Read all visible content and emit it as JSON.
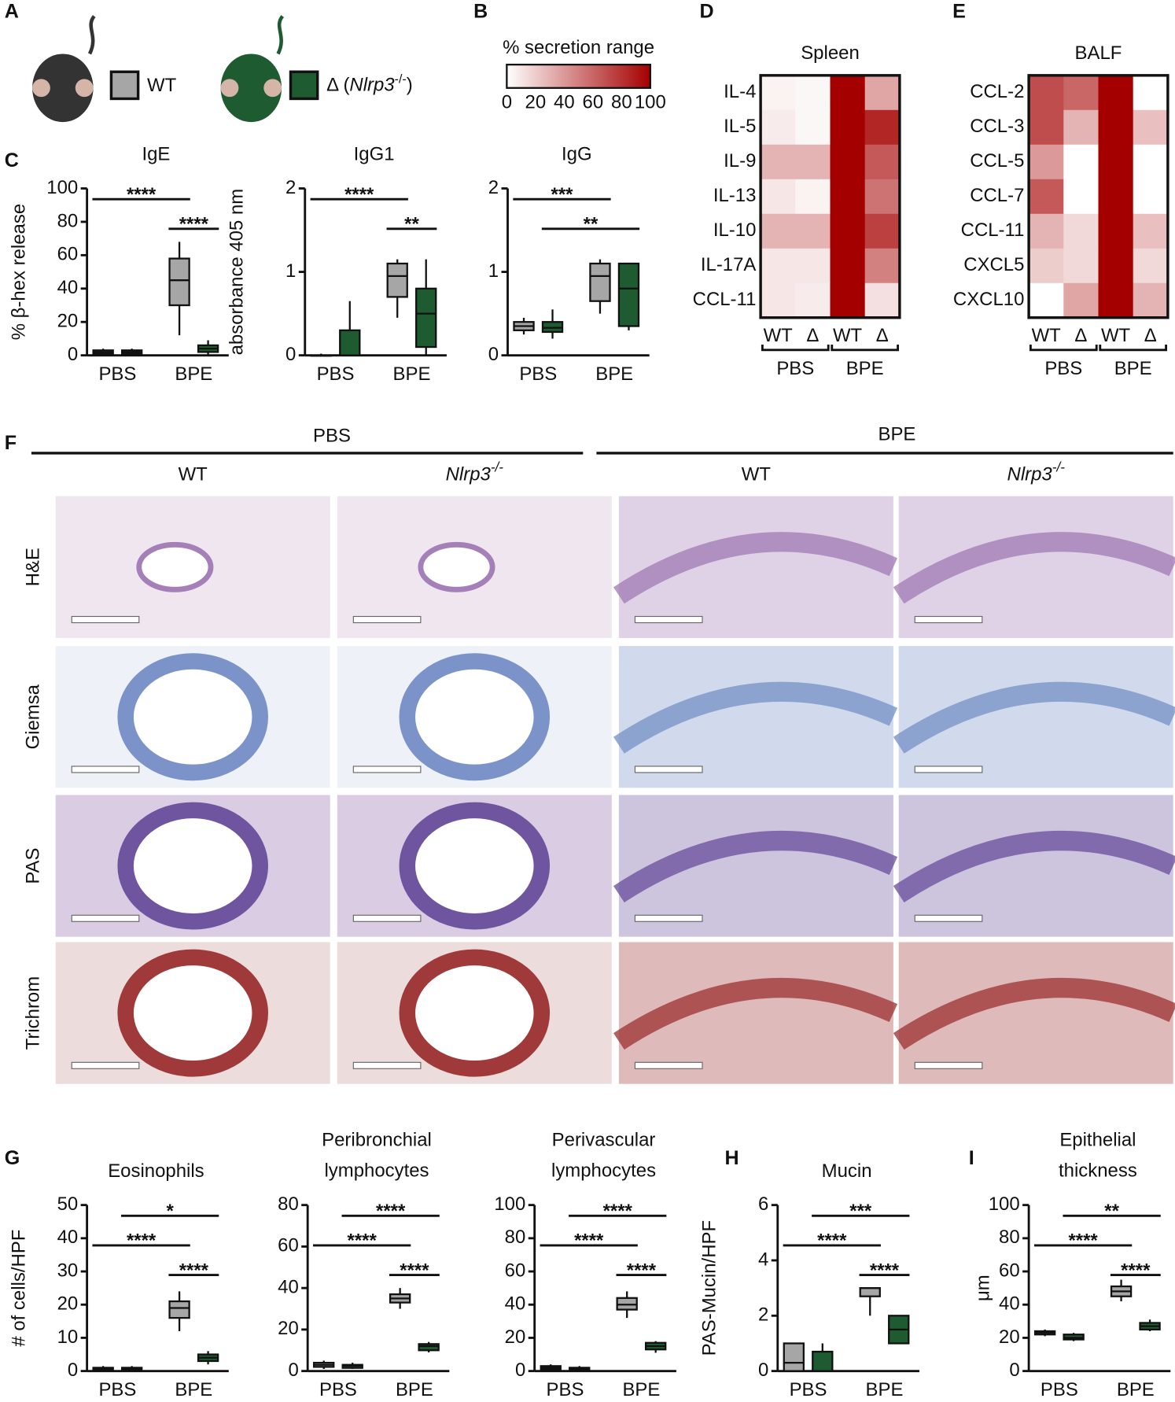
{
  "panel_labels": [
    "A",
    "B",
    "C",
    "D",
    "E",
    "F",
    "G",
    "H",
    "I"
  ],
  "legend": [
    {
      "label": "WT",
      "color": "#a6a6a6"
    },
    {
      "label": "Δ (",
      "name": "Nlrp3",
      "sup": "-/-",
      "close": ")",
      "color": "#1e5b30"
    }
  ],
  "histology": {
    "groups": [
      "PBS",
      "BPE"
    ],
    "genotypes": [
      {
        "name": "WT"
      },
      {
        "name": "Nlrp3",
        "sup": "-/-"
      },
      {
        "name": "WT"
      },
      {
        "name": "Nlrp3",
        "sup": "-/-"
      }
    ],
    "stains": [
      "H&E",
      "Giemsa",
      "PAS",
      "Trichrom"
    ]
  },
  "chart_data": [
    {
      "type": "colorbar",
      "title": "% secretion range",
      "lim": [
        0,
        100
      ],
      "ticks": [
        0,
        20,
        40,
        60,
        80,
        100
      ],
      "colors": [
        "#ffffff",
        "#a50000"
      ]
    },
    {
      "type": "box",
      "title": "IgE",
      "ylabel": "% β-hex release",
      "categories": [
        "PBS",
        "BPE"
      ],
      "ylim": [
        0,
        100
      ],
      "yticks": [
        0,
        20,
        40,
        60,
        80,
        100
      ],
      "series": [
        {
          "color": "#a6a6a6",
          "boxes": [
            [
              0,
              1,
              2,
              3,
              4
            ],
            [
              12,
              30,
              45,
              58,
              68
            ]
          ]
        },
        {
          "color": "#1e5b30",
          "boxes": [
            [
              0,
              1,
              2,
              3,
              4
            ],
            [
              0,
              2,
              4,
              6,
              9
            ]
          ]
        }
      ],
      "significance": [
        {
          "text": "****",
          "from": 0,
          "to": 2
        },
        {
          "text": "****",
          "from": 2,
          "to": 3
        }
      ]
    },
    {
      "type": "box",
      "title": "IgG1",
      "ylabel": "absorbance 405 nm",
      "categories": [
        "PBS",
        "BPE"
      ],
      "ylim": [
        0,
        2
      ],
      "yticks": [
        0,
        1,
        2
      ],
      "series": [
        {
          "color": "#a6a6a6",
          "boxes": [
            [
              0,
              0,
              0,
              0,
              0.02
            ],
            [
              0.45,
              0.7,
              0.95,
              1.1,
              1.15
            ]
          ]
        },
        {
          "color": "#1e5b30",
          "boxes": [
            [
              0,
              0,
              0,
              0.3,
              0.65
            ],
            [
              0,
              0.1,
              0.5,
              0.8,
              1.15
            ]
          ]
        }
      ],
      "significance": [
        {
          "text": "****",
          "from": 0,
          "to": 2
        },
        {
          "text": "**",
          "from": 2,
          "to": 3
        }
      ]
    },
    {
      "type": "box",
      "title": "IgG",
      "categories": [
        "PBS",
        "BPE"
      ],
      "ylim": [
        0,
        2
      ],
      "yticks": [
        0,
        1,
        2
      ],
      "series": [
        {
          "color": "#a6a6a6",
          "boxes": [
            [
              0.25,
              0.3,
              0.35,
              0.4,
              0.45
            ],
            [
              0.5,
              0.65,
              0.95,
              1.1,
              1.15
            ]
          ]
        },
        {
          "color": "#1e5b30",
          "boxes": [
            [
              0.2,
              0.28,
              0.33,
              0.4,
              0.55
            ],
            [
              0.3,
              0.35,
              0.8,
              1.1,
              1.1
            ]
          ]
        }
      ],
      "significance": [
        {
          "text": "***",
          "from": 0,
          "to": 2
        },
        {
          "text": "**",
          "from": 1,
          "to": 3
        }
      ]
    },
    {
      "type": "heatmap",
      "title": "Spleen",
      "rows": [
        "IL-4",
        "IL-5",
        "IL-9",
        "IL-13",
        "IL-10",
        "IL-17A",
        "CCL-11"
      ],
      "columns": [
        "WT",
        "Δ",
        "WT",
        "Δ"
      ],
      "groups": [
        "PBS",
        "BPE"
      ],
      "values": [
        [
          5,
          3,
          100,
          35
        ],
        [
          8,
          3,
          100,
          85
        ],
        [
          30,
          30,
          100,
          65
        ],
        [
          10,
          5,
          100,
          55
        ],
        [
          30,
          30,
          100,
          75
        ],
        [
          10,
          10,
          100,
          50
        ],
        [
          10,
          8,
          100,
          12
        ]
      ]
    },
    {
      "type": "heatmap",
      "title": "BALF",
      "rows": [
        "CCL-2",
        "CCL-3",
        "CCL-5",
        "CCL-7",
        "CCL-11",
        "CXCL5",
        "CXCL10"
      ],
      "columns": [
        "WT",
        "Δ",
        "WT",
        "Δ"
      ],
      "groups": [
        "PBS",
        "BPE"
      ],
      "values": [
        [
          70,
          60,
          100,
          0
        ],
        [
          70,
          30,
          100,
          25
        ],
        [
          40,
          0,
          100,
          0
        ],
        [
          65,
          0,
          100,
          0
        ],
        [
          30,
          15,
          100,
          25
        ],
        [
          20,
          15,
          100,
          15
        ],
        [
          0,
          35,
          100,
          30
        ]
      ]
    },
    {
      "type": "box",
      "title": "Eosinophils",
      "ylabel": "# of cells/HPF",
      "categories": [
        "PBS",
        "BPE"
      ],
      "ylim": [
        0,
        50
      ],
      "yticks": [
        0,
        10,
        20,
        30,
        40,
        50
      ],
      "series": [
        {
          "color": "#a6a6a6",
          "boxes": [
            [
              0,
              0.3,
              0.6,
              1,
              1.5
            ],
            [
              12,
              16,
              19,
              21,
              24
            ]
          ]
        },
        {
          "color": "#1e5b30",
          "boxes": [
            [
              0,
              0.3,
              0.6,
              1,
              1.5
            ],
            [
              2,
              3,
              4,
              5,
              6
            ]
          ]
        }
      ],
      "significance": [
        {
          "text": "*",
          "from": 1,
          "to": 3
        },
        {
          "text": "****",
          "from": 0,
          "to": 2
        },
        {
          "text": "****",
          "from": 2,
          "to": 3
        }
      ]
    },
    {
      "type": "box",
      "title": "Peribronchial lymphocytes",
      "categories": [
        "PBS",
        "BPE"
      ],
      "ylim": [
        0,
        80
      ],
      "yticks": [
        0,
        20,
        40,
        60,
        80
      ],
      "series": [
        {
          "color": "#a6a6a6",
          "boxes": [
            [
              1,
              2,
              3,
              4,
              5
            ],
            [
              30,
              33,
              35,
              37,
              40
            ]
          ]
        },
        {
          "color": "#1e5b30",
          "boxes": [
            [
              1,
              1.5,
              2.5,
              3,
              4
            ],
            [
              9,
              10,
              12,
              13,
              14
            ]
          ]
        }
      ],
      "significance": [
        {
          "text": "****",
          "from": 1,
          "to": 3
        },
        {
          "text": "****",
          "from": 0,
          "to": 2
        },
        {
          "text": "****",
          "from": 2,
          "to": 3
        }
      ]
    },
    {
      "type": "box",
      "title": "Perivascular lymphocytes",
      "categories": [
        "PBS",
        "BPE"
      ],
      "ylim": [
        0,
        100
      ],
      "yticks": [
        0,
        20,
        40,
        60,
        80,
        100
      ],
      "series": [
        {
          "color": "#a6a6a6",
          "boxes": [
            [
              0,
              1,
              2,
              3,
              4
            ],
            [
              32,
              37,
              40,
              44,
              48
            ]
          ]
        },
        {
          "color": "#1e5b30",
          "boxes": [
            [
              0,
              1,
              1.5,
              2,
              3
            ],
            [
              11,
              13,
              15,
              17,
              18
            ]
          ]
        }
      ],
      "significance": [
        {
          "text": "****",
          "from": 1,
          "to": 3
        },
        {
          "text": "****",
          "from": 0,
          "to": 2
        },
        {
          "text": "****",
          "from": 2,
          "to": 3
        }
      ]
    },
    {
      "type": "box",
      "title": "Mucin",
      "ylabel": "PAS-Mucin/HPF",
      "categories": [
        "PBS",
        "BPE"
      ],
      "ylim": [
        0,
        6
      ],
      "yticks": [
        0,
        2,
        4,
        6
      ],
      "series": [
        {
          "color": "#a6a6a6",
          "boxes": [
            [
              0,
              0,
              0.3,
              1,
              1
            ],
            [
              2,
              2.7,
              3,
              3,
              3
            ]
          ]
        },
        {
          "color": "#1e5b30",
          "boxes": [
            [
              0,
              0,
              0,
              0.7,
              1
            ],
            [
              1,
              1,
              1.5,
              2,
              2
            ]
          ]
        }
      ],
      "significance": [
        {
          "text": "***",
          "from": 1,
          "to": 3
        },
        {
          "text": "****",
          "from": 0,
          "to": 2
        },
        {
          "text": "****",
          "from": 2,
          "to": 3
        }
      ]
    },
    {
      "type": "box",
      "title": "Epithelial thickness",
      "ylabel": "μm",
      "categories": [
        "PBS",
        "BPE"
      ],
      "ylim": [
        0,
        100
      ],
      "yticks": [
        0,
        20,
        40,
        60,
        80,
        100
      ],
      "series": [
        {
          "color": "#a6a6a6",
          "boxes": [
            [
              21,
              22,
              23,
              24,
              25
            ],
            [
              42,
              45,
              48,
              51,
              55
            ]
          ]
        },
        {
          "color": "#1e5b30",
          "boxes": [
            [
              18,
              19,
              20,
              22,
              23
            ],
            [
              24,
              25,
              27,
              29,
              31
            ]
          ]
        }
      ],
      "significance": [
        {
          "text": "**",
          "from": 1,
          "to": 3
        },
        {
          "text": "****",
          "from": 0,
          "to": 2
        },
        {
          "text": "****",
          "from": 2,
          "to": 3
        }
      ]
    }
  ]
}
